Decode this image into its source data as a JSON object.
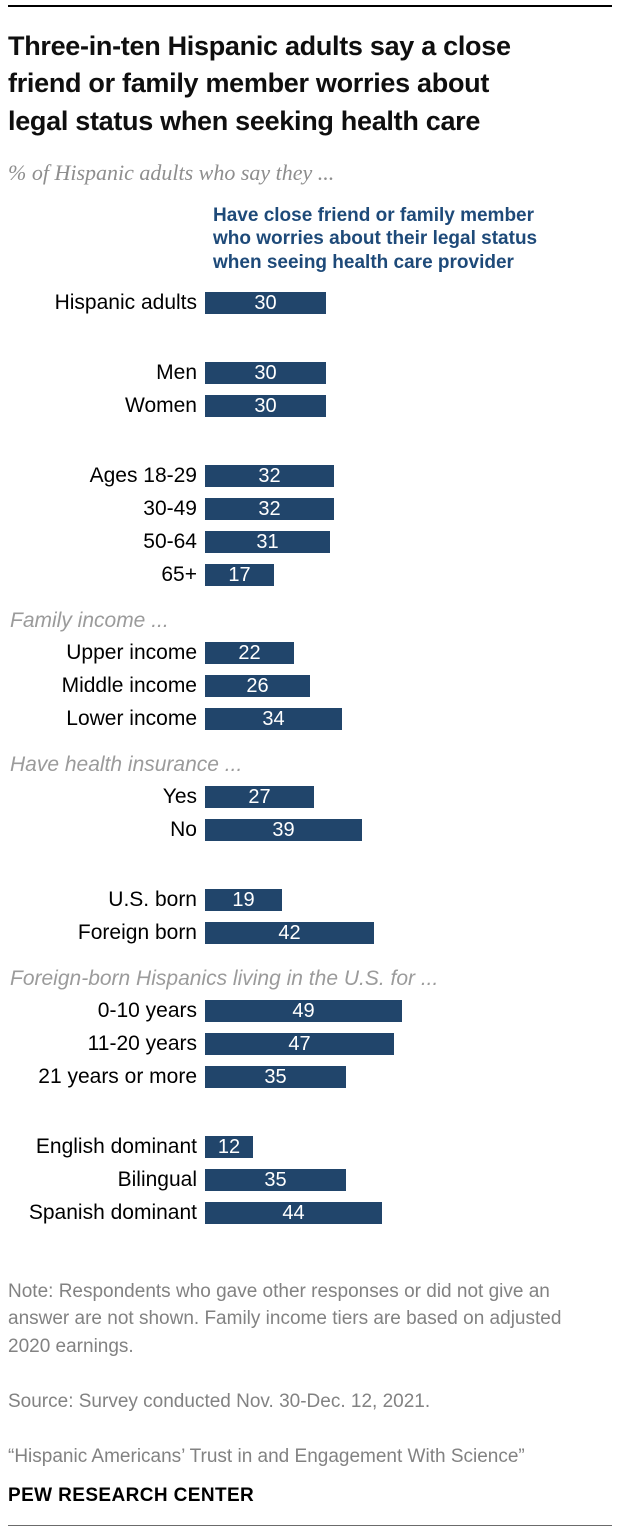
{
  "title": "Three-in-ten Hispanic adults say a close\nfriend or family member worries about\nlegal status when seeking health care",
  "subtitle": "% of Hispanic adults who say they ...",
  "bar_header": "Have close friend or family member\nwho worries about their legal status\nwhen seeing health care provider",
  "colors": {
    "bar": "#21456b",
    "bar_header_text": "#1e4a79",
    "section_label_text": "#9b9b9b",
    "note_text": "#828282"
  },
  "chart_data": {
    "type": "bar",
    "orientation": "horizontal",
    "value_unit": "%",
    "value_labels_inside_bars": true,
    "axis_shown": false,
    "implied_xlim": [
      0,
      100
    ],
    "series_label": "Have close friend or family member who worries about their legal status when seeing health care provider",
    "groups": [
      {
        "section": null,
        "rows": [
          {
            "label": "Hispanic adults",
            "value": 30
          }
        ]
      },
      {
        "section": null,
        "rows": [
          {
            "label": "Men",
            "value": 30
          },
          {
            "label": "Women",
            "value": 30
          }
        ]
      },
      {
        "section": null,
        "rows": [
          {
            "label": "Ages 18-29",
            "value": 32
          },
          {
            "label": "30-49",
            "value": 32
          },
          {
            "label": "50-64",
            "value": 31
          },
          {
            "label": "65+",
            "value": 17
          }
        ]
      },
      {
        "section": "Family income ...",
        "rows": [
          {
            "label": "Upper income",
            "value": 22
          },
          {
            "label": "Middle income",
            "value": 26
          },
          {
            "label": "Lower income",
            "value": 34
          }
        ]
      },
      {
        "section": "Have health insurance ...",
        "rows": [
          {
            "label": "Yes",
            "value": 27
          },
          {
            "label": "No",
            "value": 39
          }
        ]
      },
      {
        "section": null,
        "rows": [
          {
            "label": "U.S. born",
            "value": 19
          },
          {
            "label": "Foreign born",
            "value": 42
          }
        ]
      },
      {
        "section": "Foreign-born Hispanics living in the U.S. for ...",
        "rows": [
          {
            "label": "0-10 years",
            "value": 49
          },
          {
            "label": "11-20 years",
            "value": 47
          },
          {
            "label": "21 years or more",
            "value": 35
          }
        ]
      },
      {
        "section": null,
        "rows": [
          {
            "label": "English dominant",
            "value": 12
          },
          {
            "label": "Bilingual",
            "value": 35
          },
          {
            "label": "Spanish dominant",
            "value": 44
          }
        ]
      }
    ]
  },
  "notes": {
    "note": "Note: Respondents who gave other responses or did not give an\nanswer are not shown. Family income tiers are based on adjusted\n2020 earnings.",
    "source": "Source: Survey conducted Nov. 30-Dec. 12, 2021.",
    "report": "“Hispanic Americans’ Trust in and Engagement With Science”"
  },
  "footer": {
    "brand": "PEW RESEARCH CENTER"
  }
}
